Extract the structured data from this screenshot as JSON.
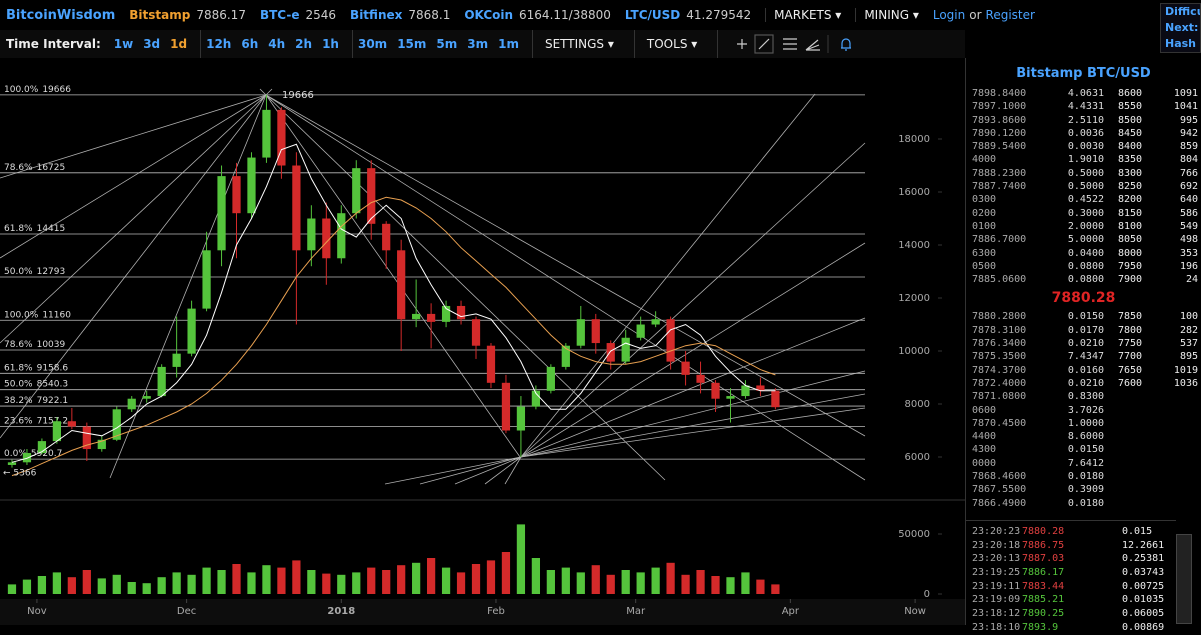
{
  "header": {
    "brand": "BitcoinWisdom",
    "tickers": [
      {
        "name": "Bitstamp",
        "price": 7886.17
      },
      {
        "name": "BTC-e",
        "price": 2546
      },
      {
        "name": "Bitfinex",
        "price": 7868.1
      },
      {
        "name": "OKCoin",
        "price": "6164.11/38800"
      },
      {
        "name": "LTC/USD",
        "price": 41.279542
      }
    ],
    "menus": [
      "MARKETS",
      "MINING"
    ],
    "login": "Login",
    "or": "or",
    "register": "Register",
    "side_box": [
      "Difficu",
      "Next:",
      "Hash R"
    ]
  },
  "toolbar": {
    "label": "Time Interval:",
    "intervals": [
      "1w",
      "3d",
      "1d",
      "12h",
      "6h",
      "4h",
      "2h",
      "1h",
      "30m",
      "15m",
      "5m",
      "3m",
      "1m"
    ],
    "active": "1d",
    "settings": "SETTINGS",
    "tools": "TOOLS"
  },
  "chart_data": {
    "type": "candlestick",
    "x": [
      -5,
      -2,
      1,
      4,
      7,
      10,
      13,
      16,
      19,
      22,
      25,
      28,
      31,
      34,
      37,
      40,
      43,
      46,
      49,
      52,
      55,
      58,
      61,
      64,
      67,
      70,
      73,
      76,
      79,
      82,
      85,
      88,
      91,
      94,
      97,
      100,
      103,
      106,
      109,
      112,
      115,
      118,
      121,
      124,
      127,
      130,
      133,
      136,
      139,
      142,
      145,
      148
    ],
    "open": [
      5700,
      5800,
      6150,
      6600,
      7350,
      7150,
      6300,
      6650,
      7800,
      8200,
      8300,
      9400,
      9900,
      11600,
      13800,
      16600,
      15200,
      17300,
      19100,
      17000,
      13800,
      15000,
      13500,
      15200,
      16900,
      14800,
      13800,
      11200,
      11400,
      11100,
      11700,
      11200,
      10200,
      8800,
      7000,
      7900,
      8500,
      9400,
      10200,
      11200,
      10300,
      9600,
      10500,
      11000,
      11200,
      9600,
      9100,
      8800,
      8200,
      8300,
      8700,
      8500
    ],
    "high": [
      5900,
      6300,
      6700,
      7500,
      7850,
      7300,
      6800,
      7900,
      8300,
      8500,
      9500,
      11300,
      11900,
      14500,
      17000,
      17100,
      17500,
      19666,
      19200,
      17500,
      15500,
      15600,
      15500,
      17200,
      17200,
      14900,
      14200,
      12700,
      11800,
      11900,
      11900,
      11300,
      10300,
      9100,
      8300,
      8700,
      9500,
      10300,
      11700,
      11400,
      10400,
      10800,
      11300,
      11500,
      11300,
      10000,
      9600,
      8900,
      8600,
      8900,
      9000,
      8600
    ],
    "low": [
      5600,
      5700,
      6100,
      6500,
      7050,
      5850,
      6200,
      6600,
      7700,
      8050,
      8250,
      9000,
      9800,
      11500,
      13200,
      13500,
      15000,
      17100,
      16500,
      11000,
      13200,
      12500,
      13300,
      15000,
      14200,
      13100,
      10000,
      10900,
      10100,
      10900,
      11000,
      9700,
      8600,
      6900,
      6000,
      7800,
      8400,
      9300,
      10100,
      9900,
      9300,
      9500,
      10400,
      10900,
      9300,
      8700,
      8400,
      7700,
      7300,
      8200,
      8300,
      7800
    ],
    "close": [
      5800,
      6150,
      6600,
      7350,
      7150,
      6300,
      6650,
      7800,
      8200,
      8300,
      9400,
      9900,
      11600,
      13800,
      16600,
      15200,
      17300,
      19100,
      17000,
      13800,
      15000,
      13500,
      15200,
      16900,
      14800,
      13800,
      11200,
      11400,
      11100,
      11700,
      11200,
      10200,
      8800,
      7000,
      7900,
      8500,
      9400,
      10200,
      11200,
      10300,
      9600,
      10500,
      11000,
      11200,
      9600,
      9100,
      8800,
      8200,
      8300,
      8700,
      8500,
      7880
    ],
    "volume": [
      8000,
      12000,
      15000,
      18000,
      14000,
      20000,
      13000,
      16000,
      10000,
      9000,
      14000,
      18000,
      16000,
      22000,
      20000,
      25000,
      18000,
      24000,
      22000,
      28000,
      20000,
      17000,
      16000,
      18000,
      22000,
      20000,
      24000,
      26000,
      30000,
      22000,
      18000,
      25000,
      28000,
      35000,
      58000,
      30000,
      20000,
      22000,
      18000,
      24000,
      16000,
      20000,
      18000,
      22000,
      26000,
      16000,
      20000,
      15000,
      14000,
      18000,
      12000,
      8000
    ],
    "up_color": "#55c43c",
    "down_color": "#d42a2a",
    "series": [
      {
        "color": "#ffffff",
        "values": [
          5800,
          5950,
          6200,
          6600,
          7000,
          6900,
          6800,
          7100,
          7500,
          8000,
          8300,
          8800,
          9500,
          10600,
          12200,
          14000,
          15000,
          16200,
          17600,
          17800,
          16500,
          15500,
          14600,
          14300,
          15000,
          15500,
          15000,
          13500,
          12500,
          11600,
          11300,
          11400,
          11200,
          10500,
          9600,
          8400,
          7800,
          7800,
          8400,
          9200,
          10000,
          10300,
          10100,
          10200,
          10800,
          11000,
          10600,
          9800,
          9200,
          8700,
          8500,
          8500
        ]
      },
      {
        "color": "#e8a050",
        "values": [
          5300,
          5500,
          5750,
          6000,
          6250,
          6450,
          6600,
          6800,
          7000,
          7200,
          7450,
          7700,
          8000,
          8400,
          8900,
          9500,
          10200,
          11000,
          11900,
          12800,
          13500,
          14100,
          14700,
          15200,
          15600,
          15800,
          15700,
          15400,
          15000,
          14500,
          13900,
          13400,
          12900,
          12400,
          11800,
          11200,
          10600,
          10100,
          9800,
          9600,
          9500,
          9500,
          9600,
          9800,
          10000,
          10200,
          10300,
          10200,
          9900,
          9600,
          9300,
          9100
        ]
      }
    ],
    "xlim": [
      -7.4,
      186
    ],
    "xticks": [
      {
        "value": 0,
        "label": "Nov"
      },
      {
        "value": 30,
        "label": "Dec"
      },
      {
        "value": 61,
        "label": "2018"
      },
      {
        "value": 92,
        "label": "Feb"
      },
      {
        "value": 120,
        "label": "Mar"
      },
      {
        "value": 151,
        "label": "Apr"
      },
      {
        "value": 176,
        "label": "Now"
      }
    ],
    "ylim": [
      4755,
      21057
    ],
    "yticks": [
      6000,
      8000,
      10000,
      12000,
      14000,
      16000,
      18000
    ],
    "y2lim": [
      0,
      75000
    ],
    "y2ticks": [
      0,
      50000
    ],
    "grid": false,
    "fib_levels": [
      {
        "label": "100.0%",
        "value": 19666
      },
      {
        "label": "78.6%",
        "value": 16725
      },
      {
        "label": "61.8%",
        "value": 14415
      },
      {
        "label": "50.0%",
        "value": 12793
      },
      {
        "label": "100.0%",
        "value": 11160
      },
      {
        "label": "78.6%",
        "value": 10039
      },
      {
        "label": "61.8%",
        "value": 9158.6
      },
      {
        "label": "50.0%",
        "value": 8540.3
      },
      {
        "label": "38.2%",
        "value": 7922.1
      },
      {
        "label": "23.6%",
        "value": 7157.2
      },
      {
        "label": "0.0%",
        "value": 5920.7
      }
    ],
    "peak_label": 19666,
    "low_label": "← 5366"
  },
  "order_book": {
    "title": "Bitstamp BTC/USD",
    "asks": [
      [
        "7898.8400",
        "4.0631",
        "8600",
        "1091"
      ],
      [
        "7897.1000",
        "4.4331",
        "8550",
        "1041"
      ],
      [
        "7893.8600",
        "2.5110",
        "8500",
        "995"
      ],
      [
        "7890.1200",
        "0.0036",
        "8450",
        "942"
      ],
      [
        "7889.5400",
        "0.0030",
        "8400",
        "859"
      ],
      [
        "4000",
        "1.9010",
        "8350",
        "804"
      ],
      [
        "7888.2300",
        "0.5000",
        "8300",
        "766"
      ],
      [
        "7887.7400",
        "0.5000",
        "8250",
        "692"
      ],
      [
        "0300",
        "0.4522",
        "8200",
        "640"
      ],
      [
        "0200",
        "0.3000",
        "8150",
        "586"
      ],
      [
        "0100",
        "2.0000",
        "8100",
        "549"
      ],
      [
        "7886.7000",
        "5.0000",
        "8050",
        "498"
      ],
      [
        "6300",
        "0.0400",
        "8000",
        "353"
      ],
      [
        "0500",
        "0.0800",
        "7950",
        "196"
      ],
      [
        "7885.0600",
        "0.0800",
        "7900",
        "24"
      ]
    ],
    "last": "7880.28",
    "bids": [
      [
        "7880.2800",
        "0.0150",
        "7850",
        "100"
      ],
      [
        "7878.3100",
        "0.0170",
        "7800",
        "282"
      ],
      [
        "7876.3400",
        "0.0210",
        "7750",
        "537"
      ],
      [
        "7875.3500",
        "7.4347",
        "7700",
        "895"
      ],
      [
        "7874.3700",
        "0.0160",
        "7650",
        "1019"
      ],
      [
        "7872.4000",
        "0.0210",
        "7600",
        "1036"
      ],
      [
        "7871.0800",
        "0.8300"
      ],
      [
        "0600",
        "3.7026"
      ],
      [
        "7870.4500",
        "1.0000"
      ],
      [
        "4400",
        "8.6000"
      ],
      [
        "4300",
        "0.0150"
      ],
      [
        "0000",
        "7.6412"
      ],
      [
        "7868.4600",
        "0.0180"
      ],
      [
        "7867.5500",
        "0.3909"
      ],
      [
        "7866.4900",
        "0.0180"
      ]
    ]
  },
  "trades": [
    {
      "time": "23:20:23",
      "price": "7880.28",
      "amount": "0.015",
      "side": "sell"
    },
    {
      "time": "23:20:18",
      "price": "7886.75",
      "amount": "12.2661",
      "side": "sell"
    },
    {
      "time": "23:20:13",
      "price": "7887.03",
      "amount": "0.25381",
      "side": "sell"
    },
    {
      "time": "23:19:25",
      "price": "7886.17",
      "amount": "0.03743",
      "side": "buy"
    },
    {
      "time": "23:19:11",
      "price": "7883.44",
      "amount": "0.00725",
      "side": "sell"
    },
    {
      "time": "23:19:09",
      "price": "7885.21",
      "amount": "0.01035",
      "side": "buy"
    },
    {
      "time": "23:18:12",
      "price": "7890.25",
      "amount": "0.06005",
      "side": "buy"
    },
    {
      "time": "23:18:10",
      "price": "7893.9",
      "amount": "0.00869",
      "side": "buy"
    }
  ]
}
